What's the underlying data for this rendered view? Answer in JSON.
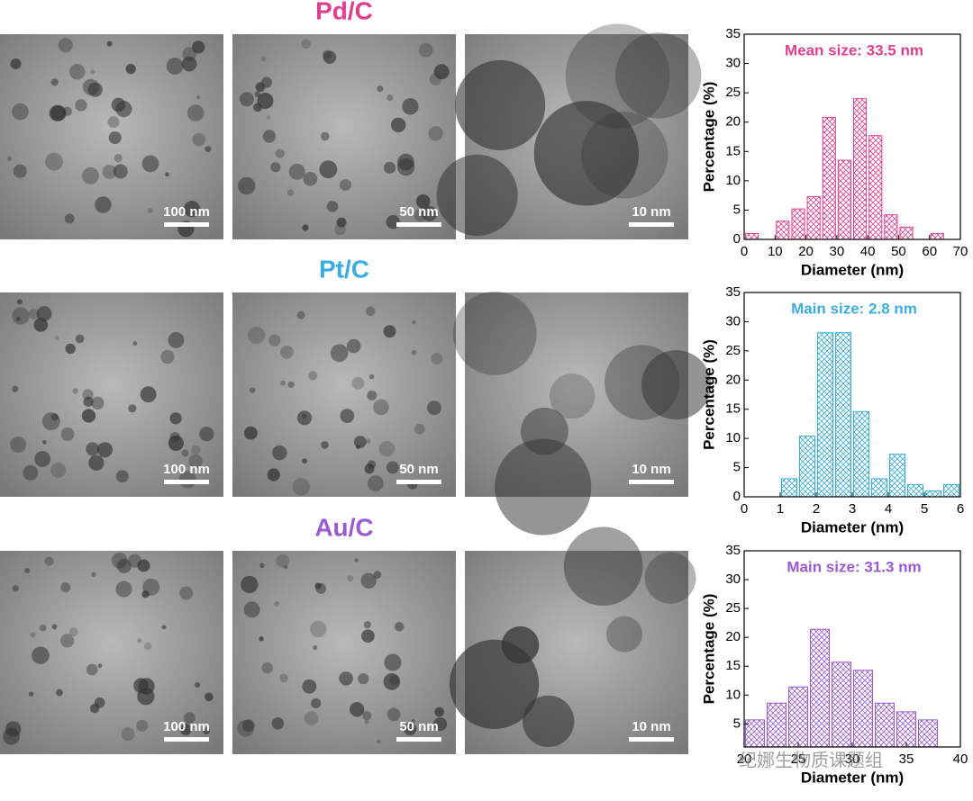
{
  "panels": [
    {
      "title": "Pd/C",
      "scale_bars": [
        "100 nm",
        "50 nm",
        "10 nm"
      ]
    },
    {
      "title": "Pt/C",
      "scale_bars": [
        "100 nm",
        "50 nm",
        "10 nm"
      ]
    },
    {
      "title": "Au/C",
      "scale_bars": [
        "100 nm",
        "50 nm",
        "10 nm"
      ]
    }
  ],
  "watermark": "纪娜生物质课题组",
  "chart_data": [
    {
      "type": "histogram",
      "annotation": "Mean size: 33.5 nm",
      "color": "#e0408f",
      "xlabel": "Diameter (nm)",
      "ylabel": "Percentage (%)",
      "bins": [
        0,
        5,
        10,
        15,
        20,
        25,
        30,
        35,
        40,
        45,
        50,
        55,
        60,
        65
      ],
      "values": [
        1,
        0,
        3.1,
        5.2,
        7.3,
        20.8,
        13.5,
        24,
        17.7,
        4.2,
        2.1,
        0,
        1
      ],
      "xlim": [
        0,
        70
      ],
      "xticks": [
        0,
        10,
        20,
        30,
        40,
        50,
        60,
        70
      ],
      "ylim": [
        0,
        35
      ],
      "yticks": [
        0,
        5,
        10,
        15,
        20,
        25,
        30,
        35
      ]
    },
    {
      "type": "histogram",
      "annotation": "Main size: 2.8 nm",
      "color": "#3aaee0",
      "xlabel": "Diameter (nm)",
      "ylabel": "Percentage (%)",
      "bins": [
        1,
        1.5,
        2,
        2.5,
        3,
        3.5,
        4,
        4.5,
        5,
        5.5,
        6
      ],
      "values": [
        3.1,
        10.4,
        28.1,
        28.1,
        14.6,
        3.1,
        7.3,
        2.1,
        1,
        2.1
      ],
      "xlim": [
        0,
        6
      ],
      "xticks": [
        0,
        1,
        2,
        3,
        4,
        5,
        6
      ],
      "ylim": [
        0,
        35
      ],
      "yticks": [
        0,
        5,
        10,
        15,
        20,
        25,
        30,
        35
      ]
    },
    {
      "type": "histogram",
      "annotation": "Main size: 31.3 nm",
      "color": "#9b59d6",
      "xlabel": "Diameter (nm)",
      "ylabel": "Percentage (%)",
      "bins": [
        20,
        22,
        24,
        26,
        28,
        30,
        32,
        34,
        36,
        38
      ],
      "values": [
        5.7,
        8.6,
        11.4,
        21.4,
        15.7,
        14.3,
        8.6,
        7.1,
        5.7
      ],
      "xlim": [
        20,
        40
      ],
      "xticks": [
        20,
        25,
        30,
        35,
        40
      ],
      "ylim": [
        1,
        35
      ],
      "yticks": [
        5,
        10,
        15,
        20,
        25,
        30,
        35
      ]
    }
  ]
}
